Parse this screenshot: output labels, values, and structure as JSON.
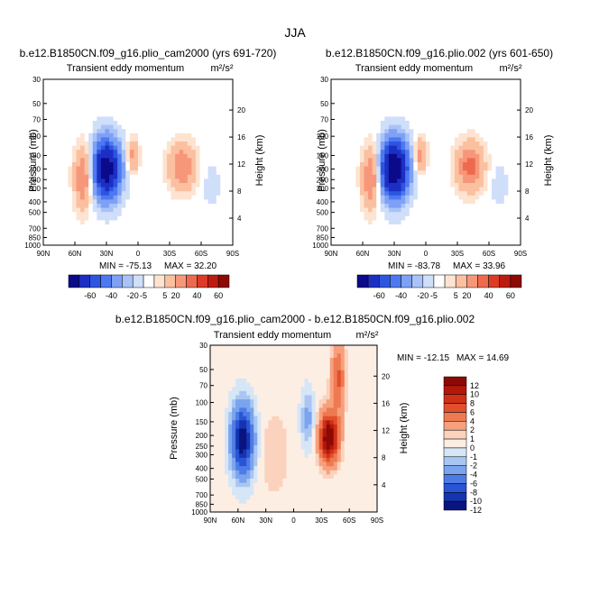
{
  "title": "JJA",
  "chart_data": [
    {
      "type": "heatmap",
      "run_title": "b.e12.B1850CN.f09_g16.plio_cam2000 (yrs 691-720)",
      "variable": "Transient eddy momentum",
      "units": "m²/s²",
      "ylabel": "Pressure (mb)",
      "y2label": "Height (km)",
      "x_ticks": [
        "90N",
        "60N",
        "30N",
        "0",
        "30S",
        "60S",
        "90S"
      ],
      "y_ticks": [
        30,
        50,
        70,
        100,
        150,
        200,
        250,
        300,
        400,
        500,
        700,
        850,
        1000
      ],
      "y2_ticks": [
        4,
        8,
        12,
        16,
        20
      ],
      "ylim": [
        1000,
        30
      ],
      "xlim": [
        "90N",
        "90S"
      ],
      "min_label": "MIN = -75.13",
      "max_label": "MAX = 32.20",
      "colorbar_levels": [
        -60,
        -40,
        -20,
        -5,
        5,
        20,
        40,
        60
      ],
      "features": [
        {
          "lat": 30,
          "p": 200,
          "value": -75,
          "spread_lat": 9,
          "spread_p": 0.42
        },
        {
          "lat": -42,
          "p": 190,
          "value": 28,
          "spread_lat": 9,
          "spread_p": 0.35
        },
        {
          "lat": 52,
          "p": 240,
          "value": 30,
          "spread_lat": 6,
          "spread_p": 0.45
        },
        {
          "lat": 5,
          "p": 150,
          "value": 22,
          "spread_lat": 4,
          "spread_p": 0.25
        },
        {
          "lat": -70,
          "p": 280,
          "value": -6,
          "spread_lat": 5,
          "spread_p": 0.3
        }
      ]
    },
    {
      "type": "heatmap",
      "run_title": "b.e12.B1850CN.f09_g16.plio.002 (yrs 601-650)",
      "variable": "Transient eddy momentum",
      "units": "m²/s²",
      "ylabel": "Pressure (mb)",
      "y2label": "Height (km)",
      "x_ticks": [
        "90N",
        "60N",
        "30N",
        "0",
        "30S",
        "60S",
        "90S"
      ],
      "y_ticks": [
        30,
        50,
        70,
        100,
        150,
        200,
        250,
        300,
        400,
        500,
        700,
        850,
        1000
      ],
      "y2_ticks": [
        4,
        8,
        12,
        16,
        20
      ],
      "ylim": [
        1000,
        30
      ],
      "xlim": [
        "90N",
        "90S"
      ],
      "min_label": "MIN = -83.78",
      "max_label": "MAX = 33.96",
      "colorbar_levels": [
        -60,
        -40,
        -20,
        -5,
        5,
        20,
        40,
        60
      ],
      "features": [
        {
          "lat": 30,
          "p": 200,
          "value": -84,
          "spread_lat": 9,
          "spread_p": 0.42
        },
        {
          "lat": -42,
          "p": 190,
          "value": 33,
          "spread_lat": 9,
          "spread_p": 0.35
        },
        {
          "lat": 52,
          "p": 240,
          "value": 31,
          "spread_lat": 6,
          "spread_p": 0.45
        },
        {
          "lat": 5,
          "p": 150,
          "value": 24,
          "spread_lat": 4,
          "spread_p": 0.25
        },
        {
          "lat": -70,
          "p": 280,
          "value": -6,
          "spread_lat": 5,
          "spread_p": 0.3
        }
      ]
    },
    {
      "type": "heatmap",
      "run_title": "b.e12.B1850CN.f09_g16.plio_cam2000 - b.e12.B1850CN.f09_g16.plio.002",
      "variable": "Transient eddy momentum",
      "units": "m²/s²",
      "ylabel": "Pressure (mb)",
      "y2label": "Height (km)",
      "x_ticks": [
        "90N",
        "60N",
        "30N",
        "0",
        "30S",
        "60S",
        "90S"
      ],
      "y_ticks": [
        30,
        50,
        70,
        100,
        150,
        200,
        250,
        300,
        400,
        500,
        700,
        850,
        1000
      ],
      "y2_ticks": [
        4,
        8,
        12,
        16,
        20
      ],
      "ylim": [
        1000,
        30
      ],
      "xlim": [
        "90N",
        "90S"
      ],
      "min_label": "MIN = -12.15",
      "max_label": "MAX = 14.69",
      "colorbar_levels": [
        12,
        10,
        8,
        6,
        4,
        2,
        1,
        0,
        -1,
        -2,
        -4,
        -6,
        -8,
        -10,
        -12
      ],
      "features": [
        {
          "lat": 55,
          "p": 220,
          "value": -12,
          "spread_lat": 8,
          "spread_p": 0.5
        },
        {
          "lat": -38,
          "p": 210,
          "value": 14.7,
          "spread_lat": 7,
          "spread_p": 0.35
        },
        {
          "lat": -48,
          "p": 60,
          "value": 6,
          "spread_lat": 5,
          "spread_p": 0.5
        },
        {
          "lat": -15,
          "p": 140,
          "value": -3,
          "spread_lat": 5,
          "spread_p": 0.4
        },
        {
          "lat": 20,
          "p": 300,
          "value": 1.5,
          "spread_lat": 10,
          "spread_p": 0.6
        }
      ]
    }
  ]
}
